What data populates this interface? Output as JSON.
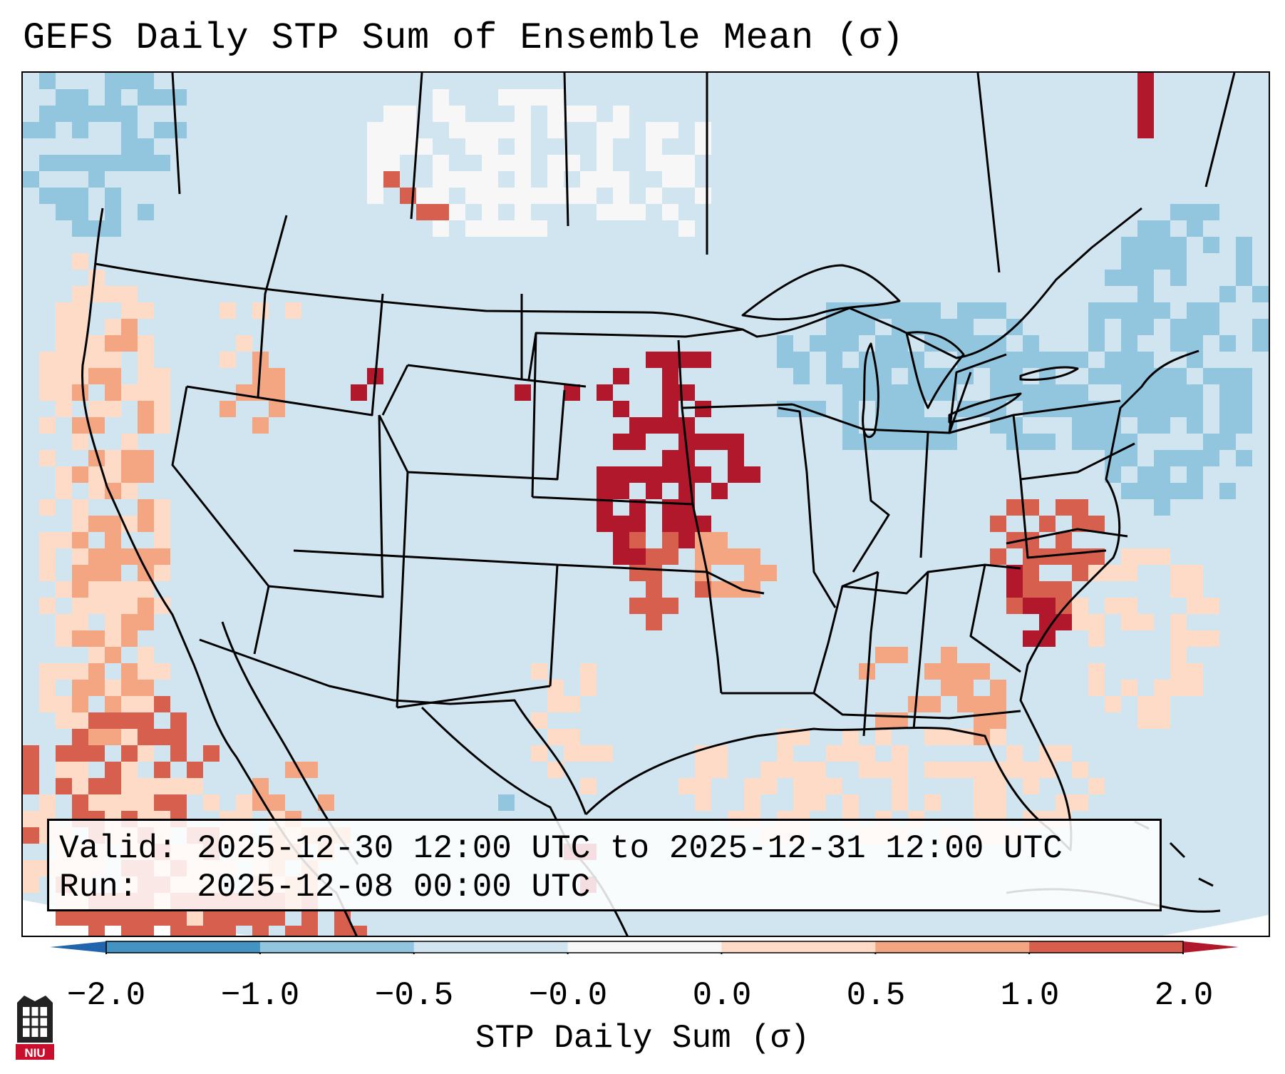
{
  "title": "GEFS Daily STP Sum of Ensemble Mean (σ)",
  "info": {
    "valid_line": "Valid: 2025-12-30 12:00 UTC to 2025-12-31 12:00 UTC",
    "run_line": "Run:   2025-12-08 00:00 UTC"
  },
  "colorbar": {
    "label": "STP Daily Sum (σ)",
    "ticks": [
      "−2.0",
      "−1.0",
      "−0.5",
      "−0.0",
      "0.0",
      "0.5",
      "1.0",
      "2.0"
    ],
    "bins": [
      {
        "from": -2.0,
        "to": -1.0,
        "color": "#4393c3"
      },
      {
        "from": -1.0,
        "to": -0.5,
        "color": "#92c5de"
      },
      {
        "from": -0.5,
        "to": -0.0,
        "color": "#d1e5f0"
      },
      {
        "from": -0.0,
        "to": 0.0,
        "color": "#f7f7f7"
      },
      {
        "from": 0.0,
        "to": 0.5,
        "color": "#fddbc7"
      },
      {
        "from": 0.5,
        "to": 1.0,
        "color": "#f4a582"
      },
      {
        "from": 1.0,
        "to": 2.0,
        "color": "#d6604d"
      }
    ],
    "under_color": "#2166ac",
    "over_color": "#b2182b"
  },
  "logo": {
    "text": "NIU"
  },
  "colors": {
    "neutral": "#f7f7f7",
    "light_blue": "#d1e5f0",
    "mid_blue": "#92c5de",
    "dark_blue": "#4393c3",
    "light_red": "#fddbc7",
    "mid_red": "#f4a582",
    "dark_red": "#d6604d",
    "deep_red": "#b2182b"
  },
  "field_regions": [
    {
      "area": "Pacific Northwest offshore",
      "category": "mid_blue"
    },
    {
      "area": "Canadian prairies",
      "category": "neutral"
    },
    {
      "area": "Great Lakes",
      "category": "mid_blue"
    },
    {
      "area": "New York / Pennsylvania",
      "category": "mid_blue"
    },
    {
      "area": "Atlantic off New England",
      "category": "mid_blue"
    },
    {
      "area": "California coast",
      "category": "light_red"
    },
    {
      "area": "Baja California offshore",
      "category": "dark_red"
    },
    {
      "area": "Eastern Nebraska / Kansas",
      "category": "deep_red"
    },
    {
      "area": "Missouri / Arkansas",
      "category": "dark_red"
    },
    {
      "area": "North / South Carolina",
      "category": "dark_red"
    },
    {
      "area": "Alabama / Georgia",
      "category": "mid_red"
    },
    {
      "area": "Gulf of Mexico",
      "category": "light_red"
    }
  ]
}
